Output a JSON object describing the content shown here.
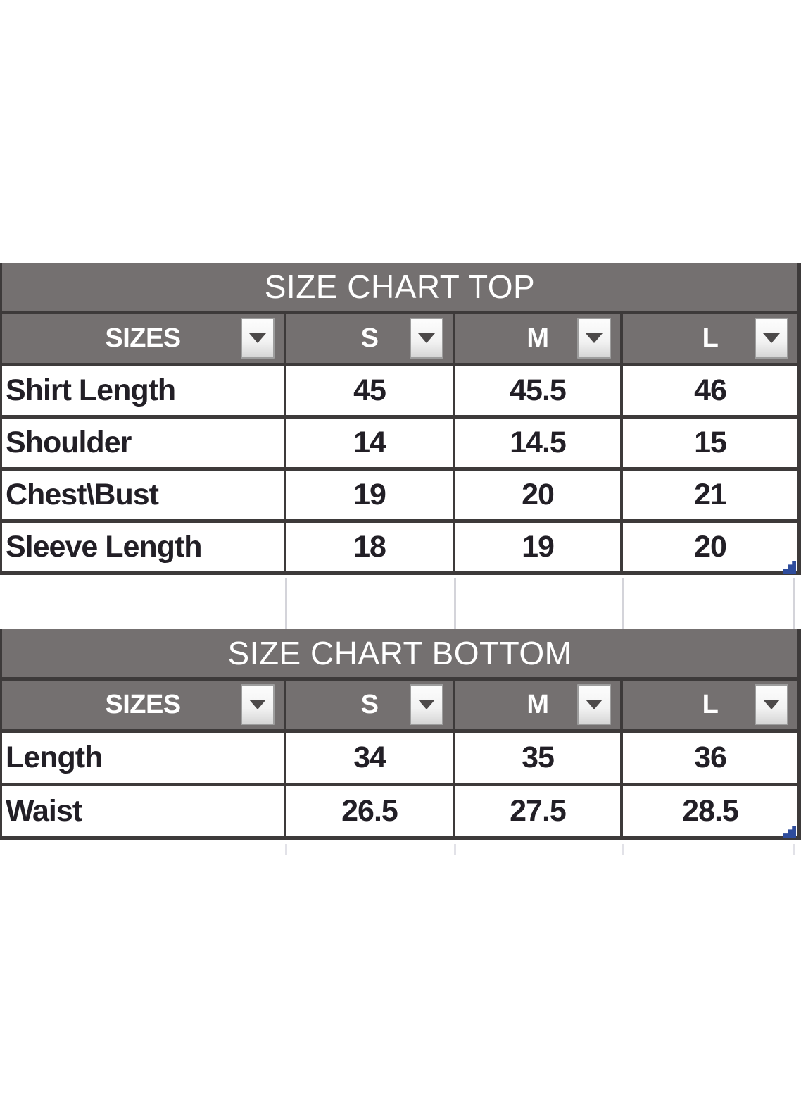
{
  "colors": {
    "header_bg": "#747070",
    "border": "#3d3a3a",
    "title_text": "#ffffff",
    "data_text": "#221f26",
    "faint_gridline": "#d4d4da",
    "resize_handle_blue": "#2e4c9c",
    "filter_button_bg": "#f5f5f5"
  },
  "icons": {
    "filter_dropdown": "chevron-down-icon"
  },
  "tables": [
    {
      "title": "SIZE CHART TOP",
      "columns": [
        "SIZES",
        "S",
        "M",
        "L"
      ],
      "rows": [
        {
          "label": "Shirt Length",
          "values": [
            "45",
            "45.5",
            "46"
          ]
        },
        {
          "label": "Shoulder",
          "values": [
            "14",
            "14.5",
            "15"
          ]
        },
        {
          "label": "Chest\\Bust",
          "values": [
            "19",
            "20",
            "21"
          ]
        },
        {
          "label": "Sleeve Length",
          "values": [
            "18",
            "19",
            "20"
          ]
        }
      ]
    },
    {
      "title": "SIZE CHART BOTTOM",
      "columns": [
        "SIZES",
        "S",
        "M",
        "L"
      ],
      "rows": [
        {
          "label": "Length",
          "values": [
            "34",
            "35",
            "36"
          ]
        },
        {
          "label": "Waist",
          "values": [
            "26.5",
            "27.5",
            "28.5"
          ]
        }
      ]
    }
  ]
}
